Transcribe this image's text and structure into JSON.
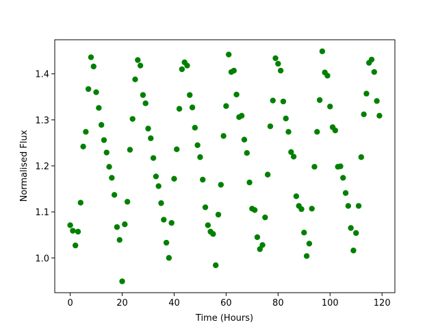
{
  "chart_data": {
    "type": "scatter",
    "xlabel": "Time (Hours)",
    "ylabel": "Normalised Flux",
    "x": [
      0,
      1,
      2,
      3,
      4,
      5,
      6,
      7,
      8,
      9,
      10,
      11,
      12,
      13,
      14,
      15,
      16,
      17,
      18,
      19,
      20,
      21,
      22,
      23,
      24,
      25,
      26,
      27,
      28,
      29,
      30,
      31,
      32,
      33,
      34,
      35,
      36,
      37,
      38,
      39,
      40,
      41,
      42,
      43,
      44,
      45,
      46,
      47,
      48,
      49,
      50,
      51,
      52,
      53,
      54,
      55,
      56,
      57,
      58,
      59,
      60,
      61,
      62,
      63,
      64,
      65,
      66,
      67,
      68,
      69,
      70,
      71,
      72,
      73,
      74,
      75,
      76,
      77,
      78,
      79,
      80,
      81,
      82,
      83,
      84,
      85,
      86,
      87,
      88,
      89,
      90,
      91,
      92,
      93,
      94,
      95,
      96,
      97,
      98,
      99,
      100,
      101,
      102,
      103,
      104,
      105,
      106,
      107,
      108,
      109,
      110,
      111,
      112,
      113,
      114,
      115,
      116,
      117,
      118,
      119
    ],
    "values": [
      1.071,
      1.059,
      1.027,
      1.057,
      1.12,
      1.242,
      1.274,
      1.367,
      1.436,
      1.416,
      1.36,
      1.326,
      1.289,
      1.256,
      1.229,
      1.198,
      1.174,
      1.137,
      1.067,
      1.039,
      0.949,
      1.073,
      1.122,
      1.235,
      1.302,
      1.388,
      1.43,
      1.418,
      1.354,
      1.336,
      1.281,
      1.26,
      1.217,
      1.177,
      1.156,
      1.119,
      1.083,
      1.033,
      1.0,
      1.076,
      1.172,
      1.236,
      1.324,
      1.41,
      1.425,
      1.418,
      1.354,
      1.327,
      1.283,
      1.245,
      1.219,
      1.17,
      1.11,
      1.071,
      1.057,
      1.052,
      0.984,
      1.094,
      1.159,
      1.265,
      1.33,
      1.442,
      1.404,
      1.407,
      1.355,
      1.306,
      1.309,
      1.257,
      1.228,
      1.164,
      1.107,
      1.104,
      1.045,
      1.019,
      1.028,
      1.088,
      1.181,
      1.286,
      1.342,
      1.434,
      1.422,
      1.407,
      1.34,
      1.303,
      1.274,
      1.23,
      1.22,
      1.134,
      1.113,
      1.106,
      1.055,
      1.004,
      1.031,
      1.107,
      1.198,
      1.274,
      1.343,
      1.449,
      1.403,
      1.396,
      1.329,
      1.284,
      1.277,
      1.198,
      1.199,
      1.174,
      1.141,
      1.113,
      1.065,
      1.016,
      1.054,
      1.113,
      1.219,
      1.312,
      1.357,
      1.424,
      1.431,
      1.404,
      1.341,
      1.309
    ],
    "color": "#008000",
    "xlim": [
      -5.95,
      124.95
    ],
    "xticks": [
      0,
      20,
      40,
      60,
      80,
      100,
      120
    ],
    "ylim": [
      0.9244,
      1.4741
    ],
    "yticks": [
      {
        "value": 1,
        "label": "1.0"
      },
      1.1,
      1.2,
      1.3,
      1.4
    ]
  }
}
